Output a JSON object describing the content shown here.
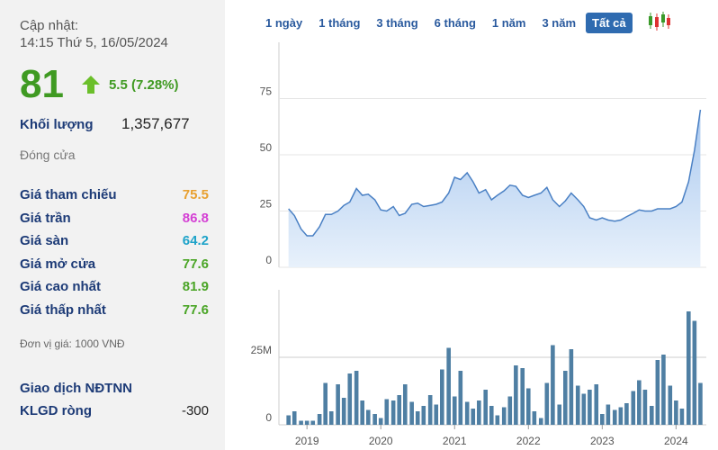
{
  "panel": {
    "update_label": "Cập nhật:",
    "update_time": "14:15 Thứ 5, 16/05/2024",
    "price": "81",
    "change": "5.5 (7.28%)",
    "volume_label": "Khối lượng",
    "volume": "1,357,677",
    "status": "Đóng cửa",
    "rows": [
      {
        "label": "Giá tham chiếu",
        "value": "75.5",
        "color": "#e8a030"
      },
      {
        "label": "Giá trần",
        "value": "86.8",
        "color": "#d43fd4"
      },
      {
        "label": "Giá sàn",
        "value": "64.2",
        "color": "#1ea3c9"
      },
      {
        "label": "Giá mở cửa",
        "value": "77.6",
        "color": "#4aa526"
      },
      {
        "label": "Giá cao nhất",
        "value": "81.9",
        "color": "#4aa526"
      },
      {
        "label": "Giá thấp nhất",
        "value": "77.6",
        "color": "#4aa526"
      }
    ],
    "unit_note": "Đơn vị giá: 1000 VNĐ",
    "foreign": {
      "title": "Giao dịch NĐTNN",
      "label": "KLGD ròng",
      "value": "-300"
    }
  },
  "tabs": {
    "items": [
      "1 ngày",
      "1 tháng",
      "3 tháng",
      "6 tháng",
      "1 năm",
      "3 năm",
      "Tất cả"
    ],
    "active": 6
  },
  "chart_data": [
    {
      "type": "area",
      "color": "#4a80c4",
      "grid": true,
      "x": [
        2018.75,
        2018.83,
        2018.92,
        2019.0,
        2019.08,
        2019.17,
        2019.25,
        2019.33,
        2019.42,
        2019.5,
        2019.58,
        2019.67,
        2019.75,
        2019.83,
        2019.92,
        2020.0,
        2020.08,
        2020.17,
        2020.25,
        2020.33,
        2020.42,
        2020.5,
        2020.58,
        2020.67,
        2020.75,
        2020.83,
        2020.92,
        2021.0,
        2021.08,
        2021.17,
        2021.25,
        2021.33,
        2021.42,
        2021.5,
        2021.58,
        2021.67,
        2021.75,
        2021.83,
        2021.92,
        2022.0,
        2022.08,
        2022.17,
        2022.25,
        2022.33,
        2022.42,
        2022.5,
        2022.58,
        2022.67,
        2022.75,
        2022.83,
        2022.92,
        2023.0,
        2023.08,
        2023.17,
        2023.25,
        2023.33,
        2023.42,
        2023.5,
        2023.58,
        2023.67,
        2023.75,
        2023.83,
        2023.92,
        2024.0,
        2024.08,
        2024.17,
        2024.25,
        2024.33
      ],
      "values": [
        26,
        23,
        17,
        14,
        14,
        18,
        23.5,
        23.5,
        25,
        27.5,
        29,
        35,
        32,
        32.5,
        30,
        25.5,
        25,
        27,
        23,
        24,
        28,
        28.5,
        27,
        27.5,
        28,
        29,
        33,
        40,
        39,
        42,
        38,
        33,
        34.5,
        30,
        32,
        34,
        36.5,
        36,
        32,
        31,
        32,
        33,
        35.5,
        30,
        27,
        29.5,
        33,
        30,
        27,
        22,
        21,
        22,
        21,
        20.5,
        21,
        22.5,
        24,
        25.5,
        25,
        25,
        26,
        26,
        26,
        27,
        29,
        38,
        52,
        70
      ],
      "xlim": [
        2018.62,
        2024.41
      ],
      "ylim": [
        0,
        100
      ],
      "yticks": [
        0,
        25,
        50,
        75
      ]
    },
    {
      "type": "bar",
      "color": "#4f7fa3",
      "x": [
        2018.75,
        2018.83,
        2018.92,
        2019.0,
        2019.08,
        2019.17,
        2019.25,
        2019.33,
        2019.42,
        2019.5,
        2019.58,
        2019.67,
        2019.75,
        2019.83,
        2019.92,
        2020.0,
        2020.08,
        2020.17,
        2020.25,
        2020.33,
        2020.42,
        2020.5,
        2020.58,
        2020.67,
        2020.75,
        2020.83,
        2020.92,
        2021.0,
        2021.08,
        2021.17,
        2021.25,
        2021.33,
        2021.42,
        2021.5,
        2021.58,
        2021.67,
        2021.75,
        2021.83,
        2021.92,
        2022.0,
        2022.08,
        2022.17,
        2022.25,
        2022.33,
        2022.42,
        2022.5,
        2022.58,
        2022.67,
        2022.75,
        2022.83,
        2022.92,
        2023.0,
        2023.08,
        2023.17,
        2023.25,
        2023.33,
        2023.42,
        2023.5,
        2023.58,
        2023.67,
        2023.75,
        2023.83,
        2023.92,
        2024.0,
        2024.08,
        2024.17,
        2024.25,
        2024.33
      ],
      "values": [
        3500000,
        5000000,
        1500000,
        1500000,
        1500000,
        4000000,
        15500000,
        5000000,
        15000000,
        10000000,
        19000000,
        20000000,
        9000000,
        5500000,
        4000000,
        2500000,
        9500000,
        9000000,
        11000000,
        15000000,
        8500000,
        5000000,
        7000000,
        11000000,
        7500000,
        20500000,
        28500000,
        10500000,
        20000000,
        8500000,
        6000000,
        9000000,
        13000000,
        7000000,
        3500000,
        6500000,
        10500000,
        22000000,
        21000000,
        13500000,
        5000000,
        2500000,
        15500000,
        29500000,
        7500000,
        20000000,
        28000000,
        14500000,
        11500000,
        13000000,
        15000000,
        4000000,
        7500000,
        5500000,
        6500000,
        8000000,
        12500000,
        16500000,
        13000000,
        7000000,
        24000000,
        26000000,
        14500000,
        9000000,
        6000000,
        42000000,
        38500000,
        15500000
      ],
      "xlim": [
        2018.62,
        2024.41
      ],
      "ylim": [
        0,
        50000000
      ],
      "yticks": [
        0,
        {
          "value": 25000000,
          "label": "25M"
        }
      ],
      "xticks": [
        2019,
        2020,
        2021,
        2022,
        2023,
        2024
      ]
    }
  ]
}
